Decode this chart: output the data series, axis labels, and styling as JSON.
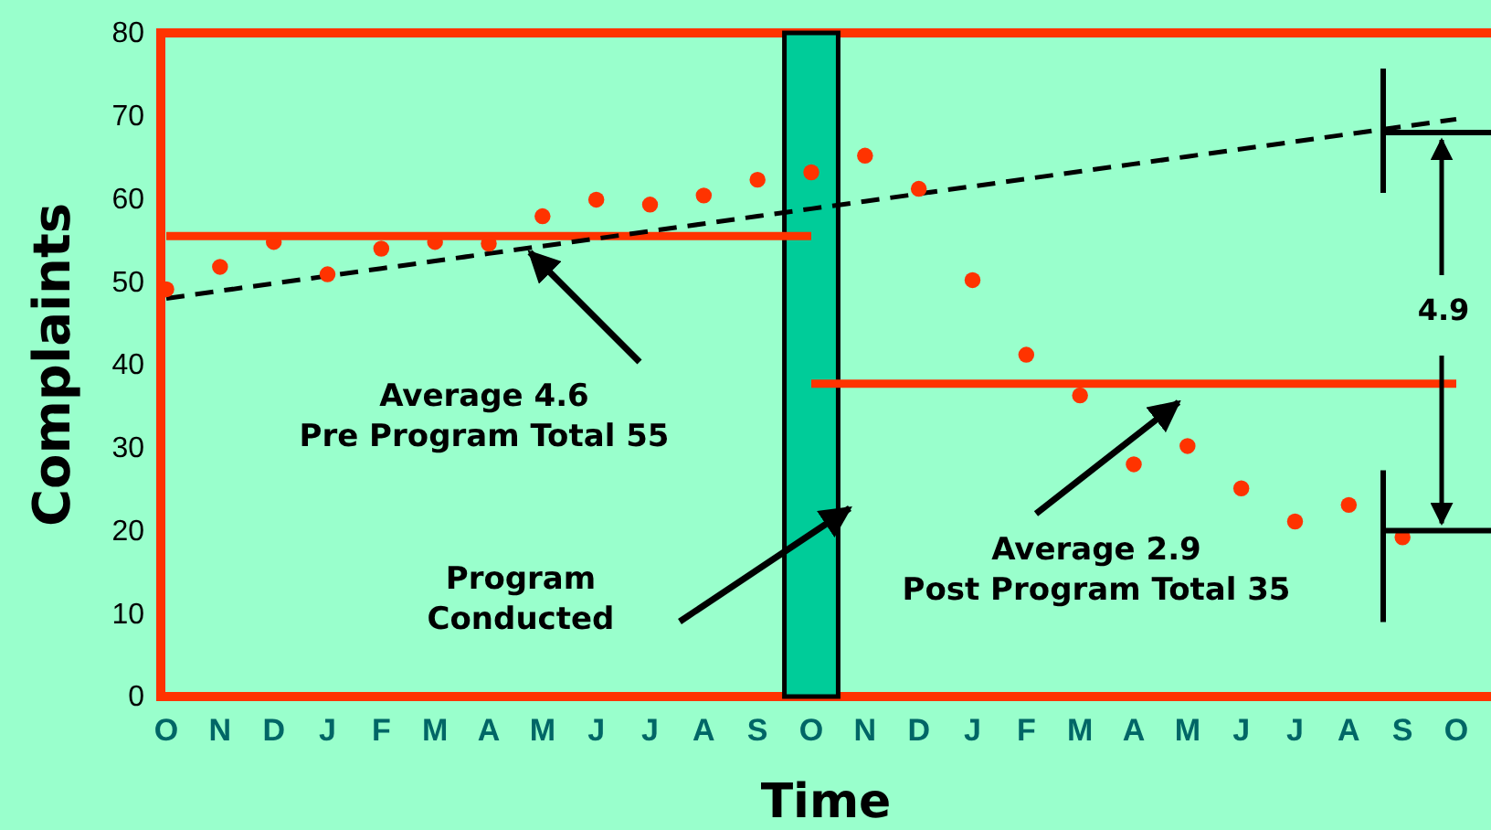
{
  "chart_data": {
    "type": "scatter",
    "xlabel": "Time",
    "ylabel": "Complaints",
    "categories": [
      "O",
      "N",
      "D",
      "J",
      "F",
      "M",
      "A",
      "M",
      "J",
      "J",
      "A",
      "S",
      "O",
      "N",
      "D",
      "J",
      "F",
      "M",
      "A",
      "M",
      "J",
      "J",
      "A",
      "S",
      "O"
    ],
    "ylim": [
      0,
      80
    ],
    "yticks": [
      0,
      10,
      20,
      30,
      40,
      50,
      60,
      70,
      80
    ],
    "grid": false,
    "series": [
      {
        "type": "bar",
        "color": "#00cc99",
        "values": [
          null,
          null,
          null,
          null,
          null,
          null,
          null,
          null,
          null,
          null,
          null,
          null,
          80,
          null,
          null,
          null,
          null,
          null,
          null,
          null,
          null,
          null,
          null,
          null,
          null
        ]
      },
      {
        "type": "line",
        "color": "#ff3300",
        "line_style": "solid",
        "marker": "none",
        "values": [
          55.5,
          55.5,
          55.5,
          55.5,
          55.5,
          55.5,
          55.5,
          55.5,
          55.5,
          55.5,
          55.5,
          55.5,
          55.5,
          null,
          null,
          null,
          null,
          null,
          null,
          null,
          null,
          null,
          null,
          null,
          null
        ]
      },
      {
        "type": "line",
        "color": "#ff3300",
        "line_style": "solid",
        "marker": "none",
        "values": [
          null,
          null,
          null,
          null,
          null,
          null,
          null,
          null,
          null,
          null,
          null,
          null,
          37.7,
          37.7,
          37.7,
          37.7,
          37.7,
          37.7,
          37.7,
          37.7,
          37.7,
          37.7,
          37.7,
          37.7,
          37.7
        ]
      },
      {
        "type": "line",
        "color": "#000000",
        "line_style": "dashed",
        "marker": "none",
        "values": [
          48,
          48.9,
          49.8,
          50.7,
          51.6,
          52.5,
          53.4,
          54.3,
          55.2,
          56.1,
          57,
          57.9,
          58.8,
          59.7,
          60.6,
          61.5,
          62.4,
          63.3,
          64.2,
          65.1,
          66,
          66.9,
          67.8,
          68.7,
          69.6
        ]
      },
      {
        "color": "#ff3300",
        "marker": "circle",
        "values": [
          49.1,
          51.8,
          54.8,
          50.9,
          54,
          54.8,
          54.6,
          57.9,
          59.9,
          59.3,
          60.4,
          62.3,
          63.2,
          65.2,
          61.2,
          50.2,
          41.2,
          36.3,
          28,
          30.2,
          25.1,
          21.1,
          23.1,
          19.2,
          null
        ]
      }
    ],
    "annotations": [
      "Average 4.6\nPre Program Total 55",
      "Program\nConducted",
      "Average 2.9\nPost Program Total 35",
      "4.9"
    ]
  }
}
